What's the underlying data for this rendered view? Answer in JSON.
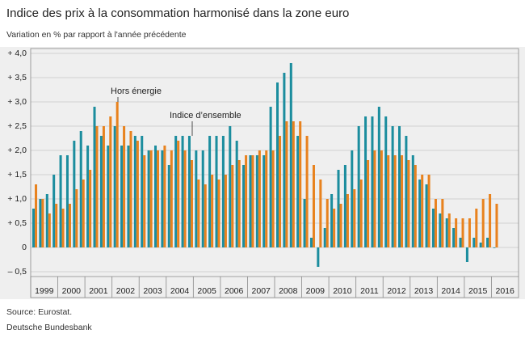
{
  "chart_data": {
    "type": "bar",
    "title": "Indice des prix à la consommation harmonisé dans la zone euro",
    "subtitle": "Variation en % par rapport à l'année précédente",
    "years": [
      "1999",
      "2000",
      "2001",
      "2002",
      "2003",
      "2004",
      "2005",
      "2006",
      "2007",
      "2008",
      "2009",
      "2010",
      "2011",
      "2012",
      "2013",
      "2014",
      "2015",
      "2016"
    ],
    "series": [
      {
        "name": "Indice d’ensemble",
        "color": "#1b8d9e",
        "values": [
          0.8,
          1.0,
          1.1,
          1.5,
          1.9,
          1.9,
          2.2,
          2.4,
          2.1,
          2.9,
          2.3,
          2.1,
          2.5,
          2.1,
          2.1,
          2.3,
          2.3,
          2.0,
          2.1,
          2.0,
          1.7,
          2.3,
          2.3,
          2.3,
          2.0,
          2.0,
          2.3,
          2.3,
          2.3,
          2.5,
          2.2,
          1.7,
          1.9,
          1.9,
          1.9,
          2.9,
          3.4,
          3.6,
          3.8,
          2.3,
          1.0,
          0.2,
          -0.4,
          0.4,
          1.1,
          1.6,
          1.7,
          2.0,
          2.5,
          2.7,
          2.7,
          2.9,
          2.7,
          2.5,
          2.5,
          2.3,
          1.9,
          1.4,
          1.3,
          0.8,
          0.7,
          0.6,
          0.4,
          0.2,
          -0.3,
          0.2,
          0.1,
          0.2,
          0.0
        ]
      },
      {
        "name": "Hors énergie",
        "color": "#e8821e",
        "values": [
          1.3,
          1.0,
          0.7,
          0.9,
          0.8,
          0.9,
          1.2,
          1.4,
          1.6,
          2.5,
          2.5,
          2.7,
          3.0,
          2.5,
          2.4,
          2.2,
          1.9,
          2.0,
          2.0,
          2.1,
          2.0,
          2.2,
          2.0,
          1.8,
          1.4,
          1.3,
          1.5,
          1.4,
          1.5,
          1.7,
          1.8,
          1.9,
          1.9,
          2.0,
          2.0,
          2.0,
          2.3,
          2.6,
          2.6,
          2.6,
          2.3,
          1.7,
          1.4,
          1.0,
          0.8,
          0.9,
          1.1,
          1.2,
          1.4,
          1.8,
          2.0,
          2.0,
          1.9,
          1.9,
          1.9,
          1.8,
          1.7,
          1.5,
          1.5,
          1.0,
          1.0,
          0.7,
          0.6,
          0.6,
          0.6,
          0.8,
          1.0,
          1.1,
          0.9
        ]
      }
    ],
    "ylim": [
      -0.6,
      4.1
    ],
    "yticks": [
      {
        "value": -0.5,
        "label": "– 0,5"
      },
      0,
      {
        "value": 0.5,
        "label": "+ 0,5"
      },
      {
        "value": 1.0,
        "label": "+ 1,0"
      },
      {
        "value": 1.5,
        "label": "+ 1,5"
      },
      {
        "value": 2.0,
        "label": "+ 2,0"
      },
      {
        "value": 2.5,
        "label": "+ 2,5"
      },
      {
        "value": 3.0,
        "label": "+ 3,0"
      },
      {
        "value": 3.5,
        "label": "+ 3,5"
      },
      {
        "value": 4.0,
        "label": "+ 4,0"
      }
    ],
    "grid": true,
    "source": "Source: Eurostat.",
    "publisher": "Deutsche Bundesbank"
  }
}
